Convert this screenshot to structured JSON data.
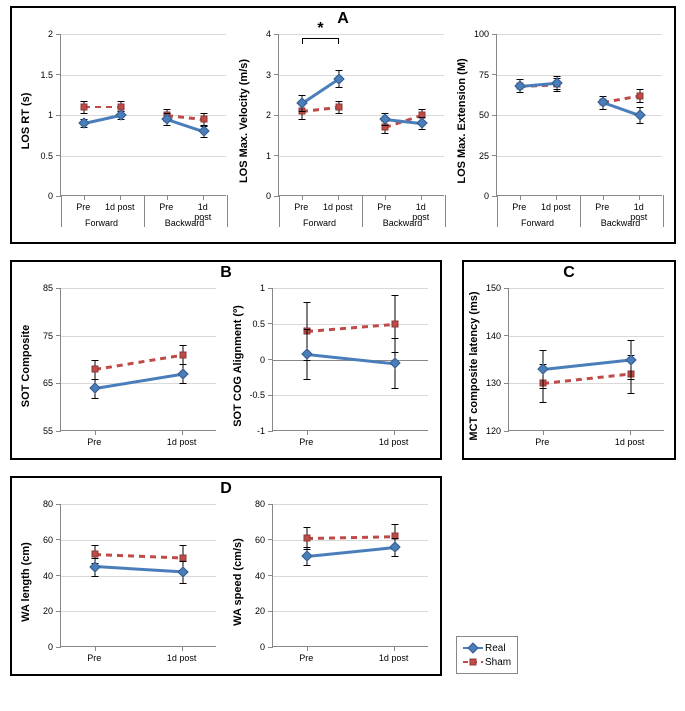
{
  "colors": {
    "real": "#4a7ebb",
    "sham": "#be4b48",
    "grid": "#d9d9d9",
    "axis": "#888888",
    "text": "#000000",
    "bg": "#ffffff"
  },
  "legend": {
    "real": "Real",
    "sham": "Sham"
  },
  "panel_labels": {
    "A": "A",
    "B": "B",
    "C": "C",
    "D": "D"
  },
  "panels": {
    "A": {
      "charts": [
        {
          "ylabel": "LOS RT (s)",
          "ylim": [
            0,
            2
          ],
          "ystep": 0.5,
          "categories": [
            "Forward",
            "Backward"
          ],
          "xticks": [
            "Pre",
            "1d post"
          ],
          "series": {
            "real": {
              "Forward": [
                0.9,
                1.0
              ],
              "Backward": [
                0.95,
                0.8
              ]
            },
            "sham": {
              "Forward": [
                1.1,
                1.1
              ],
              "Backward": [
                1.0,
                0.95
              ]
            }
          },
          "err": {
            "real": {
              "Forward": [
                0.05,
                0.05
              ],
              "Backward": [
                0.07,
                0.07
              ]
            },
            "sham": {
              "Forward": [
                0.07,
                0.07
              ],
              "Backward": [
                0.07,
                0.07
              ]
            }
          }
        },
        {
          "ylabel": "LOS Max. Velocity (m/s)",
          "ylim": [
            0,
            4
          ],
          "ystep": 1,
          "categories": [
            "Forward",
            "Backward"
          ],
          "xticks": [
            "Pre",
            "1d post"
          ],
          "series": {
            "real": {
              "Forward": [
                2.3,
                2.9
              ],
              "Backward": [
                1.9,
                1.8
              ]
            },
            "sham": {
              "Forward": [
                2.1,
                2.2
              ],
              "Backward": [
                1.7,
                2.0
              ]
            }
          },
          "err": {
            "real": {
              "Forward": [
                0.2,
                0.2
              ],
              "Backward": [
                0.15,
                0.15
              ]
            },
            "sham": {
              "Forward": [
                0.2,
                0.15
              ],
              "Backward": [
                0.15,
                0.15
              ]
            }
          },
          "sig": {
            "group": "Forward",
            "star": "*"
          }
        },
        {
          "ylabel": "LOS Max. Extension (M)",
          "ylim": [
            0,
            100
          ],
          "ystep": 25,
          "categories": [
            "Forward",
            "Backward"
          ],
          "xticks": [
            "Pre",
            "1d post"
          ],
          "series": {
            "real": {
              "Forward": [
                68,
                70
              ],
              "Backward": [
                58,
                50
              ]
            },
            "sham": {
              "Forward": [
                68,
                69
              ],
              "Backward": [
                58,
                62
              ]
            }
          },
          "err": {
            "real": {
              "Forward": [
                4,
                4
              ],
              "Backward": [
                4,
                5
              ]
            },
            "sham": {
              "Forward": [
                4,
                4
              ],
              "Backward": [
                4,
                4
              ]
            }
          }
        }
      ]
    },
    "B": {
      "charts": [
        {
          "ylabel": "SOT Composite",
          "ylim": [
            55,
            85
          ],
          "ystep": 10,
          "xticks": [
            "Pre",
            "1d post"
          ],
          "series": {
            "real": [
              64,
              67
            ],
            "sham": [
              68,
              71
            ]
          },
          "err": {
            "real": [
              2,
              2
            ],
            "sham": [
              2,
              2
            ]
          }
        },
        {
          "ylabel": "SOT COG Alignment (º)",
          "ylim": [
            -1,
            1
          ],
          "ystep": 0.5,
          "xticks": [
            "Pre",
            "1d post"
          ],
          "series": {
            "real": [
              0.08,
              -0.05
            ],
            "sham": [
              0.4,
              0.5
            ]
          },
          "err": {
            "real": [
              0.35,
              0.35
            ],
            "sham": [
              0.4,
              0.4
            ]
          },
          "zero_line": true
        }
      ]
    },
    "C": {
      "charts": [
        {
          "ylabel": "MCT composite latency (ms)",
          "ylim": [
            120,
            150
          ],
          "ystep": 10,
          "xticks": [
            "Pre",
            "1d post"
          ],
          "series": {
            "real": [
              133,
              135
            ],
            "sham": [
              130,
              132
            ]
          },
          "err": {
            "real": [
              4,
              4
            ],
            "sham": [
              4,
              4
            ]
          }
        }
      ]
    },
    "D": {
      "charts": [
        {
          "ylabel": "WA length (cm)",
          "ylim": [
            0,
            80
          ],
          "ystep": 20,
          "xticks": [
            "Pre",
            "1d post"
          ],
          "series": {
            "real": [
              45,
              42
            ],
            "sham": [
              52,
              50
            ]
          },
          "err": {
            "real": [
              5,
              6
            ],
            "sham": [
              5,
              7
            ]
          }
        },
        {
          "ylabel": "WA speed (cm/s)",
          "ylim": [
            0,
            80
          ],
          "ystep": 20,
          "xticks": [
            "Pre",
            "1d post"
          ],
          "series": {
            "real": [
              51,
              56
            ],
            "sham": [
              61,
              62
            ]
          },
          "err": {
            "real": [
              5,
              5
            ],
            "sham": [
              6,
              7
            ]
          }
        }
      ]
    }
  }
}
